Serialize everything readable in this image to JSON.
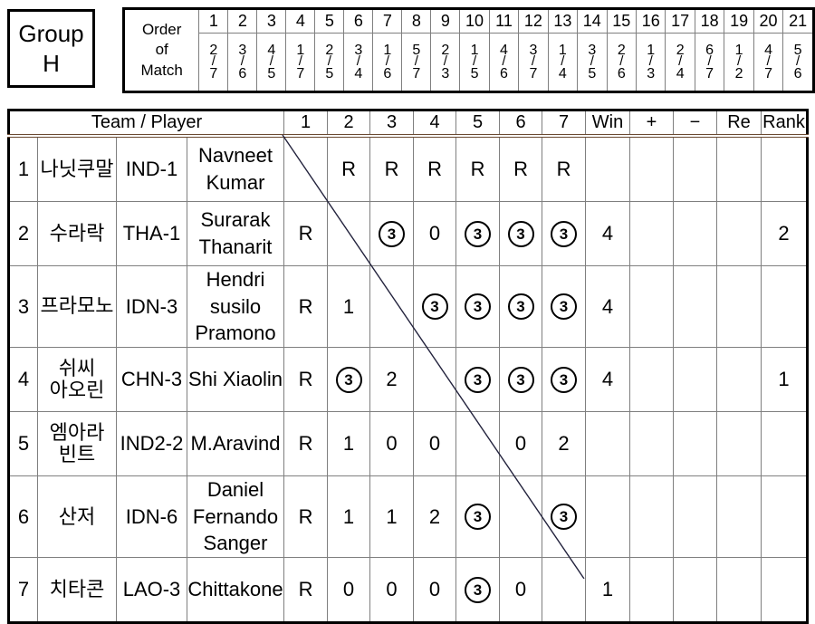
{
  "group": {
    "line1": "Group",
    "line2": "H"
  },
  "order_of_match": {
    "label_lines": [
      "Order",
      "of",
      "Match"
    ],
    "matches": [
      {
        "no": "1",
        "pair": "2/7"
      },
      {
        "no": "2",
        "pair": "3/6"
      },
      {
        "no": "3",
        "pair": "4/5"
      },
      {
        "no": "4",
        "pair": "1/7"
      },
      {
        "no": "5",
        "pair": "2/5"
      },
      {
        "no": "6",
        "pair": "3/4"
      },
      {
        "no": "7",
        "pair": "1/6"
      },
      {
        "no": "8",
        "pair": "5/7"
      },
      {
        "no": "9",
        "pair": "2/3"
      },
      {
        "no": "10",
        "pair": "1/5"
      },
      {
        "no": "11",
        "pair": "4/6"
      },
      {
        "no": "12",
        "pair": "3/7"
      },
      {
        "no": "13",
        "pair": "1/4"
      },
      {
        "no": "14",
        "pair": "3/5"
      },
      {
        "no": "15",
        "pair": "2/6"
      },
      {
        "no": "16",
        "pair": "1/3"
      },
      {
        "no": "17",
        "pair": "2/4"
      },
      {
        "no": "18",
        "pair": "6/7"
      },
      {
        "no": "19",
        "pair": "1/2"
      },
      {
        "no": "20",
        "pair": "4/7"
      },
      {
        "no": "21",
        "pair": "5/6"
      }
    ]
  },
  "standings": {
    "header": {
      "team_player": "Team / Player",
      "rounds": [
        "1",
        "2",
        "3",
        "4",
        "5",
        "6",
        "7"
      ],
      "win": "Win",
      "plus": "+",
      "minus": "−",
      "re": "Re",
      "rank": "Rank"
    },
    "rows": [
      {
        "no": "1",
        "korean": "나닛쿠말",
        "code": "IND-1",
        "player": "Navneet\nKumar",
        "results": [
          "",
          "R",
          "R",
          "R",
          "R",
          "R",
          "R"
        ],
        "win": "",
        "plus": "",
        "minus": "",
        "re": "",
        "rank": ""
      },
      {
        "no": "2",
        "korean": "수라락",
        "code": "THA-1",
        "player": "Surarak\nThanarit",
        "results": [
          "R",
          "",
          "③",
          "0",
          "③",
          "③",
          "③"
        ],
        "win": "4",
        "plus": "",
        "minus": "",
        "re": "",
        "rank": "2"
      },
      {
        "no": "3",
        "korean": "프라모노",
        "code": "IDN-3",
        "player": "Hendri susilo\nPramono",
        "results": [
          "R",
          "1",
          "",
          "③",
          "③",
          "③",
          "③"
        ],
        "win": "4",
        "plus": "",
        "minus": "",
        "re": "",
        "rank": ""
      },
      {
        "no": "4",
        "korean": "쉬씨\n아오린",
        "code": "CHN-3",
        "player": "Shi Xiaolin",
        "results": [
          "R",
          "③",
          "2",
          "",
          "③",
          "③",
          "③"
        ],
        "win": "4",
        "plus": "",
        "minus": "",
        "re": "",
        "rank": "1"
      },
      {
        "no": "5",
        "korean": "엠아라\n빈트",
        "code": "IND2-2",
        "player": "M.Aravind",
        "results": [
          "R",
          "1",
          "0",
          "0",
          "",
          "0",
          "2"
        ],
        "win": "",
        "plus": "",
        "minus": "",
        "re": "",
        "rank": ""
      },
      {
        "no": "6",
        "korean": "산저",
        "code": "IDN-6",
        "player": "Daniel\nFernando\nSanger",
        "results": [
          "R",
          "1",
          "1",
          "2",
          "③",
          "",
          "③"
        ],
        "win": "",
        "plus": "",
        "minus": "",
        "re": "",
        "rank": ""
      },
      {
        "no": "7",
        "korean": "치타콘",
        "code": "LAO-3",
        "player": "Chittakone",
        "results": [
          "R",
          "0",
          "0",
          "0",
          "③",
          "0",
          ""
        ],
        "win": "1",
        "plus": "",
        "minus": "",
        "re": "",
        "rank": ""
      }
    ]
  },
  "colors": {
    "grid_line": "#7f7f7f",
    "outer_border": "#000000",
    "header_double_rule": "#6b4a32",
    "diagonal_line": "#23233d",
    "background": "#ffffff"
  }
}
